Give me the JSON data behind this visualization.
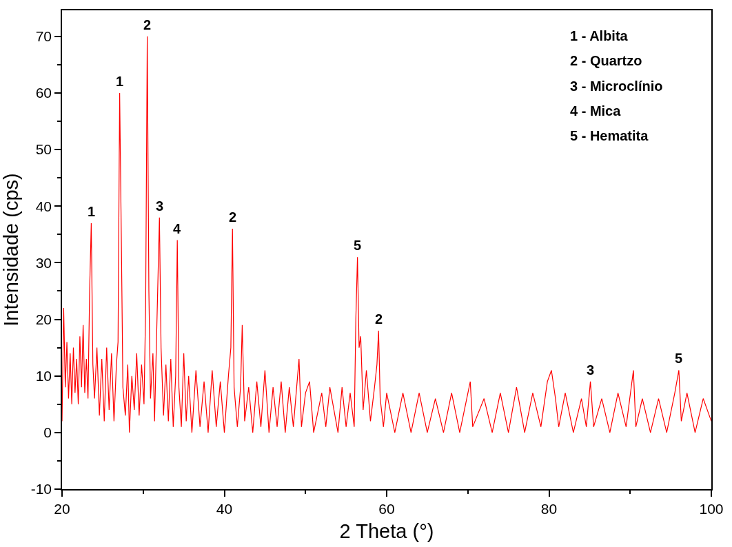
{
  "chart_data": {
    "type": "line",
    "xlabel": "2 Theta (°)",
    "ylabel": "Intensidade (cps)",
    "xlim": [
      20,
      100
    ],
    "ylim": [
      -10,
      74.6
    ],
    "xticks": [
      20,
      {
        "value": 30,
        "label": null
      },
      40,
      {
        "value": 50,
        "label": null
      },
      60,
      {
        "value": 70,
        "label": null
      },
      80,
      {
        "value": 90,
        "label": null
      },
      100
    ],
    "yticks": [
      -10,
      {
        "value": -5,
        "label": null
      },
      0,
      {
        "value": 5,
        "label": null
      },
      10,
      {
        "value": 15,
        "label": null
      },
      20,
      {
        "value": 25,
        "label": null
      },
      30,
      {
        "value": 35,
        "label": null
      },
      40,
      {
        "value": 45,
        "label": null
      },
      50,
      {
        "value": 55,
        "label": null
      },
      60,
      {
        "value": 65,
        "label": null
      },
      70
    ],
    "grid": false,
    "marker": "none",
    "line_style": "solid",
    "series": [
      {
        "color": "#ff0000",
        "x": [
          20,
          20.2,
          20.4,
          20.6,
          20.8,
          21,
          21.2,
          21.4,
          21.6,
          21.8,
          22,
          22.2,
          22.4,
          22.6,
          22.8,
          23,
          23.2,
          23.4,
          23.6,
          23.8,
          24,
          24.3,
          24.6,
          24.9,
          25.2,
          25.5,
          25.8,
          26.1,
          26.4,
          26.7,
          26.9,
          27.1,
          27.3,
          27.5,
          27.8,
          28.1,
          28.3,
          28.6,
          28.9,
          29.2,
          29.5,
          29.8,
          30.1,
          30.3,
          30.5,
          30.7,
          30.9,
          31.2,
          31.4,
          31.7,
          32,
          32.2,
          32.5,
          32.8,
          33.1,
          33.4,
          33.7,
          34,
          34.2,
          34.4,
          34.7,
          35,
          35.3,
          35.6,
          36,
          36.5,
          37,
          37.5,
          38,
          38.5,
          39,
          39.5,
          40,
          40.5,
          40.8,
          41,
          41.2,
          41.6,
          42,
          42.2,
          42.5,
          43,
          43.5,
          44,
          44.5,
          45,
          45.5,
          46,
          46.5,
          47,
          47.5,
          48,
          48.5,
          49.2,
          49.5,
          50,
          50.5,
          51,
          52,
          52.5,
          53,
          54,
          54.5,
          55,
          55.5,
          56,
          56.2,
          56.4,
          56.6,
          56.8,
          57.1,
          57.5,
          58,
          58.5,
          58.8,
          59,
          59.2,
          59.6,
          60,
          61,
          62,
          63,
          64,
          65,
          66,
          67,
          68,
          69,
          70.3,
          70.6,
          72,
          73,
          74,
          75,
          76,
          77,
          78,
          79,
          79.8,
          80.3,
          80.8,
          81.2,
          82,
          83,
          84,
          84.6,
          85.1,
          85.5,
          86.5,
          87.5,
          88.5,
          89.5,
          90.4,
          90.7,
          91.5,
          92.5,
          93.5,
          94.5,
          95.5,
          96,
          96.3,
          97,
          98,
          99,
          100
        ],
        "values": [
          2,
          22,
          8,
          16,
          6,
          14,
          5,
          15,
          7,
          13,
          5,
          17,
          8,
          19,
          7,
          13,
          6,
          25,
          37,
          12,
          6,
          15,
          3,
          13,
          2,
          15,
          4,
          14,
          2,
          12,
          16,
          60,
          35,
          8,
          3,
          12,
          0,
          10,
          4,
          14,
          3,
          12,
          5,
          22,
          70,
          25,
          6,
          14,
          2,
          20,
          38,
          15,
          3,
          12,
          2,
          13,
          1,
          10,
          34,
          8,
          1,
          14,
          2,
          10,
          0,
          11,
          1,
          9,
          0,
          11,
          1,
          9,
          0,
          10,
          15,
          36,
          8,
          1,
          8,
          19,
          2,
          8,
          0,
          9,
          1,
          11,
          0,
          8,
          1,
          9,
          0,
          8,
          1,
          13,
          1,
          7,
          9,
          0,
          7,
          1,
          8,
          0,
          8,
          1,
          7,
          1,
          20,
          31,
          15,
          17,
          4,
          11,
          2,
          8,
          12,
          18,
          6,
          1,
          7,
          0,
          7,
          0,
          7,
          0,
          6,
          0,
          7,
          0,
          9,
          1,
          6,
          0,
          7,
          0,
          8,
          0,
          7,
          1,
          9,
          11,
          6,
          1,
          7,
          0,
          6,
          1,
          9,
          1,
          6,
          0,
          7,
          1,
          11,
          1,
          6,
          0,
          6,
          0,
          7,
          11,
          2,
          7,
          0,
          6,
          2
        ]
      }
    ],
    "annotations": [
      {
        "text": "1",
        "x": 23.6,
        "y": 37
      },
      {
        "text": "1",
        "x": 27.1,
        "y": 60
      },
      {
        "text": "2",
        "x": 30.5,
        "y": 70
      },
      {
        "text": "3",
        "x": 32,
        "y": 38
      },
      {
        "text": "4",
        "x": 34.2,
        "y": 34
      },
      {
        "text": "2",
        "x": 41,
        "y": 36
      },
      {
        "text": "5",
        "x": 56.4,
        "y": 31
      },
      {
        "text": "2",
        "x": 59,
        "y": 18
      },
      {
        "text": "3",
        "x": 85.1,
        "y": 9
      },
      {
        "text": "5",
        "x": 96,
        "y": 11
      },
      "1 - Albita",
      "2 - Quartzo",
      "3 - Microclínio",
      "4 - Mica",
      "5 - Hematita"
    ]
  }
}
